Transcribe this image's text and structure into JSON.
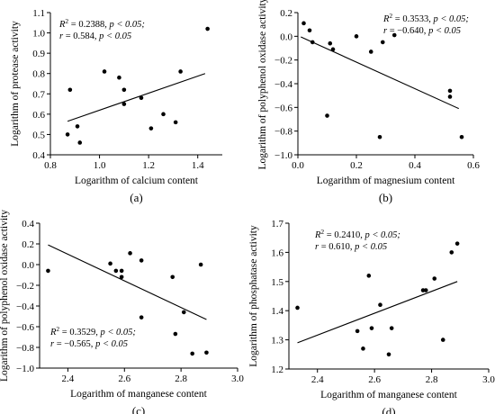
{
  "chart_data": [
    {
      "type": "scatter",
      "panel_label": "(a)",
      "xlabel": "Logarithm of calcium content",
      "ylabel": "Logarithm of protease activity",
      "xlim": [
        0.8,
        1.5
      ],
      "ylim": [
        0.4,
        1.1
      ],
      "xticks": [
        "0.8",
        "1.0",
        "1.2",
        "1.4"
      ],
      "yticks": [
        "0.4",
        "0.5",
        "0.6",
        "0.7",
        "0.8",
        "0.9",
        "1.0",
        "1.1"
      ],
      "points": [
        [
          0.87,
          0.5
        ],
        [
          0.88,
          0.72
        ],
        [
          0.91,
          0.54
        ],
        [
          0.92,
          0.46
        ],
        [
          1.02,
          0.81
        ],
        [
          1.08,
          0.78
        ],
        [
          1.1,
          0.72
        ],
        [
          1.1,
          0.65
        ],
        [
          1.17,
          0.68
        ],
        [
          1.21,
          0.53
        ],
        [
          1.26,
          0.6
        ],
        [
          1.31,
          0.56
        ],
        [
          1.33,
          0.81
        ],
        [
          1.44,
          1.02
        ]
      ],
      "trendline": [
        [
          0.87,
          0.565
        ],
        [
          1.43,
          0.8
        ]
      ],
      "annotation": {
        "r2": "0.2388",
        "p": "p < 0.05",
        "r": "0.584",
        "p2": "p < 0.05"
      },
      "annotation_position": "top-left"
    },
    {
      "type": "scatter",
      "panel_label": "(b)",
      "xlabel": "Logarithm of magnesium content",
      "ylabel": "Logarithm of polyphenol oxidase activity",
      "xlim": [
        0.0,
        0.6
      ],
      "ylim": [
        -1.0,
        0.2
      ],
      "xticks": [
        "0.0",
        "0.2",
        "0.4",
        "0.6"
      ],
      "yticks": [
        "-1.0",
        "-0.8",
        "-0.6",
        "-0.4",
        "-0.2",
        "0.0",
        "0.2"
      ],
      "points": [
        [
          0.02,
          0.11
        ],
        [
          0.04,
          0.05
        ],
        [
          0.05,
          -0.05
        ],
        [
          0.1,
          -0.67
        ],
        [
          0.11,
          -0.06
        ],
        [
          0.12,
          -0.11
        ],
        [
          0.2,
          0.0
        ],
        [
          0.25,
          -0.13
        ],
        [
          0.28,
          -0.85
        ],
        [
          0.29,
          -0.05
        ],
        [
          0.33,
          0.01
        ],
        [
          0.52,
          -0.46
        ],
        [
          0.52,
          -0.51
        ],
        [
          0.56,
          -0.85
        ]
      ],
      "trendline": [
        [
          0.01,
          -0.005
        ],
        [
          0.55,
          -0.61
        ]
      ],
      "annotation": {
        "r2": "0.3533",
        "p": "p < 0.05",
        "r": "−0.640",
        "p2": "p < 0.05"
      },
      "annotation_position": "top-right"
    },
    {
      "type": "scatter",
      "panel_label": "(c)",
      "xlabel": "Logarithm of manganese content",
      "ylabel": "Logarithm of polyphenol oxidase activity",
      "xlim": [
        2.3,
        3.0
      ],
      "ylim": [
        -1.0,
        0.4
      ],
      "xticks": [
        "2.4",
        "2.6",
        "2.8",
        "3.0"
      ],
      "yticks": [
        "-1.0",
        "-0.8",
        "-0.6",
        "-0.4",
        "-0.2",
        "0.0",
        "0.2",
        "0.4"
      ],
      "points": [
        [
          2.33,
          -0.06
        ],
        [
          2.55,
          0.01
        ],
        [
          2.57,
          -0.06
        ],
        [
          2.59,
          -0.06
        ],
        [
          2.59,
          -0.12
        ],
        [
          2.62,
          0.11
        ],
        [
          2.66,
          0.04
        ],
        [
          2.66,
          -0.51
        ],
        [
          2.77,
          -0.12
        ],
        [
          2.78,
          -0.67
        ],
        [
          2.81,
          -0.46
        ],
        [
          2.84,
          -0.86
        ],
        [
          2.87,
          0.0
        ],
        [
          2.89,
          -0.85
        ]
      ],
      "trendline": [
        [
          2.33,
          0.19
        ],
        [
          2.89,
          -0.53
        ]
      ],
      "annotation": {
        "r2": "0.3529",
        "p": "p < 0.05",
        "r": "−0.565",
        "p2": "p < 0.05"
      },
      "annotation_position": "bottom-left"
    },
    {
      "type": "scatter",
      "panel_label": "(d)",
      "xlabel": "Logarithm of manganese content",
      "ylabel": "Logarithm of phosphatase activity",
      "xlim": [
        2.3,
        3.0
      ],
      "ylim": [
        1.2,
        1.7
      ],
      "xticks": [
        "2.4",
        "2.6",
        "2.8",
        "3.0"
      ],
      "yticks": [
        "1.2",
        "1.3",
        "1.4",
        "1.5",
        "1.6",
        "1.7"
      ],
      "points": [
        [
          2.33,
          1.41
        ],
        [
          2.54,
          1.33
        ],
        [
          2.56,
          1.27
        ],
        [
          2.58,
          1.52
        ],
        [
          2.59,
          1.34
        ],
        [
          2.62,
          1.42
        ],
        [
          2.65,
          1.25
        ],
        [
          2.66,
          1.34
        ],
        [
          2.77,
          1.47
        ],
        [
          2.78,
          1.47
        ],
        [
          2.81,
          1.51
        ],
        [
          2.84,
          1.3
        ],
        [
          2.87,
          1.6
        ],
        [
          2.89,
          1.63
        ]
      ],
      "trendline": [
        [
          2.33,
          1.29
        ],
        [
          2.89,
          1.5
        ]
      ],
      "annotation": {
        "r2": "0.2410",
        "p": "p < 0.05",
        "r": "0.610",
        "p2": "p < 0.05"
      },
      "annotation_position": "top-left"
    }
  ]
}
